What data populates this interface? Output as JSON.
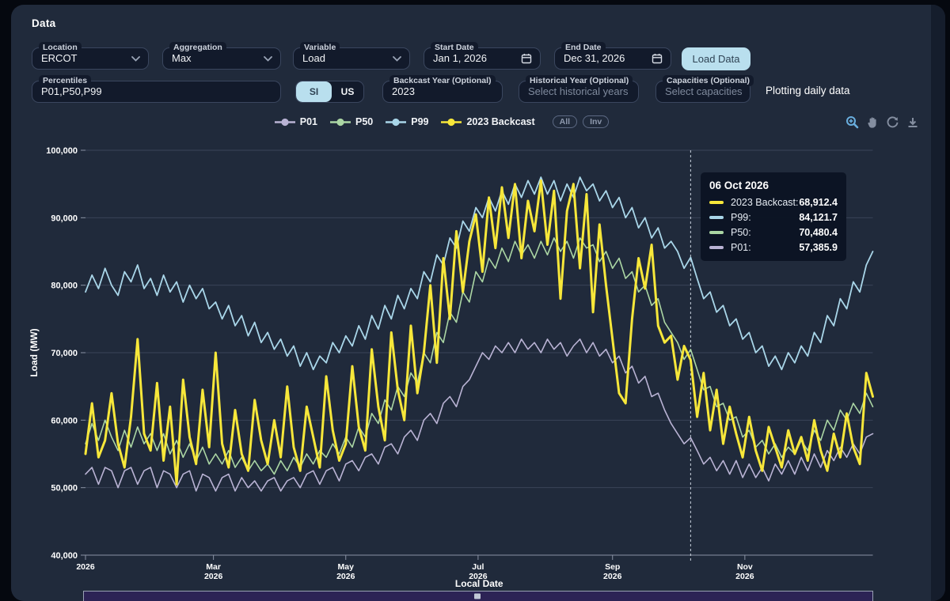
{
  "header": {
    "title": "Data"
  },
  "controls": {
    "location": {
      "label": "Location",
      "value": "ERCOT"
    },
    "aggregation": {
      "label": "Aggregation",
      "value": "Max"
    },
    "variable": {
      "label": "Variable",
      "value": "Load"
    },
    "start_date": {
      "label": "Start Date",
      "value": "Jan 1, 2026"
    },
    "end_date": {
      "label": "End Date",
      "value": "Dec 31, 2026"
    },
    "load_button": "Load Data",
    "percentiles": {
      "label": "Percentiles",
      "value": "P01,P50,P99"
    },
    "units": {
      "options": [
        "SI",
        "US"
      ],
      "selected": "SI"
    },
    "backcast_year": {
      "label": "Backcast Year (Optional)",
      "value": "2023"
    },
    "historical_year": {
      "label": "Historical Year (Optional)",
      "placeholder": "Select historical years"
    },
    "capacities": {
      "label": "Capacities (Optional)",
      "placeholder": "Select capacities"
    },
    "note": "Plotting daily data"
  },
  "legend": {
    "items": [
      {
        "label": "P01",
        "color": "#b9b3d4"
      },
      {
        "label": "P50",
        "color": "#abd6a4"
      },
      {
        "label": "P99",
        "color": "#a9d6e9"
      },
      {
        "label": "2023 Backcast",
        "color": "#f7e73a"
      }
    ],
    "buttons": [
      "All",
      "Inv"
    ]
  },
  "modebar": {
    "icons": [
      "zoom-in",
      "pan",
      "reset-axes",
      "download"
    ],
    "active_color": "#69aede",
    "idle_color": "#848ea0"
  },
  "tooltip": {
    "date": "06 Oct 2026",
    "rows": [
      {
        "label": "2023 Backcast:",
        "value": "68,912.4",
        "color": "#f7e73a"
      },
      {
        "label": "P99:",
        "value": "84,121.7",
        "color": "#a9d6e9"
      },
      {
        "label": "P50:",
        "value": "70,480.4",
        "color": "#abd6a4"
      },
      {
        "label": "P01:",
        "value": "57,385.9",
        "color": "#b9b3d4"
      }
    ]
  },
  "chart_data": {
    "type": "line",
    "title": "",
    "xlabel": "Local Date",
    "ylabel": "Load (MW)",
    "ylim": [
      40000,
      100000
    ],
    "grid": true,
    "legend_position": "top-center",
    "yticks": [
      {
        "value": 40000,
        "label": "40,000"
      },
      {
        "value": 50000,
        "label": "50,000"
      },
      {
        "value": 60000,
        "label": "60,000"
      },
      {
        "value": 70000,
        "label": "70,000"
      },
      {
        "value": 80000,
        "label": "80,000"
      },
      {
        "value": 90000,
        "label": "90,000"
      },
      {
        "value": 100000,
        "label": "100,000"
      }
    ],
    "xticks": [
      {
        "day": 0,
        "lines": [
          "2026"
        ]
      },
      {
        "day": 59,
        "lines": [
          "Mar",
          "2026"
        ]
      },
      {
        "day": 120,
        "lines": [
          "May",
          "2026"
        ]
      },
      {
        "day": 181,
        "lines": [
          "Jul",
          "2026"
        ]
      },
      {
        "day": 243,
        "lines": [
          "Sep",
          "2026"
        ]
      },
      {
        "day": 304,
        "lines": [
          "Nov",
          "2026"
        ]
      }
    ],
    "x_day_step": 3,
    "x_range_days": [
      0,
      363
    ],
    "marker_line": {
      "day": 279,
      "date": "06 Oct 2026",
      "style": "dashed"
    },
    "rangeslider": true,
    "series": [
      {
        "name": "P01",
        "color": "#b9b3d4",
        "width": 1.6,
        "values": [
          52000,
          53000,
          50500,
          53000,
          52500,
          50000,
          52500,
          53000,
          50500,
          52500,
          53000,
          50000,
          52500,
          52000,
          50000,
          52000,
          52500,
          49500,
          52000,
          51500,
          49500,
          51500,
          52000,
          49500,
          51500,
          50000,
          51000,
          49500,
          51000,
          51500,
          49500,
          51000,
          51500,
          50000,
          52000,
          52500,
          50500,
          52500,
          53000,
          51000,
          53500,
          54000,
          52500,
          54500,
          55000,
          53500,
          56000,
          56500,
          55000,
          57500,
          58500,
          57000,
          60000,
          61000,
          59500,
          62500,
          63500,
          62000,
          65000,
          66000,
          68000,
          70000,
          69000,
          71000,
          70000,
          71500,
          70000,
          72000,
          70500,
          71500,
          70000,
          72000,
          70500,
          71500,
          69500,
          71000,
          72000,
          70000,
          71500,
          69500,
          70500,
          68500,
          69500,
          67000,
          68000,
          65500,
          66500,
          63500,
          64000,
          61500,
          59500,
          58000,
          56500,
          57385.9,
          55500,
          53500,
          54500,
          52500,
          54000,
          52000,
          54000,
          51500,
          53500,
          51500,
          53000,
          51000,
          53500,
          52000,
          54000,
          52000,
          54500,
          52500,
          55000,
          53000,
          55500,
          54000,
          56000,
          54500,
          56500,
          55000,
          57500,
          58000
        ]
      },
      {
        "name": "P50",
        "color": "#abd6a4",
        "width": 1.6,
        "values": [
          56500,
          59500,
          57000,
          60000,
          57500,
          55500,
          58500,
          56000,
          59000,
          56500,
          58000,
          55500,
          58000,
          55000,
          57000,
          54500,
          56500,
          54000,
          56000,
          53500,
          55000,
          53500,
          55500,
          53000,
          54500,
          52500,
          54000,
          52500,
          53500,
          52000,
          54000,
          52500,
          54500,
          53000,
          55000,
          53500,
          55500,
          54500,
          56500,
          55000,
          57500,
          56000,
          59000,
          57500,
          61000,
          59500,
          63000,
          61500,
          65000,
          63500,
          67000,
          65500,
          70000,
          68500,
          73000,
          71500,
          76000,
          74500,
          79000,
          77500,
          82000,
          80500,
          84000,
          82500,
          85500,
          83500,
          86500,
          84500,
          86000,
          84000,
          86500,
          84500,
          87000,
          85000,
          86500,
          84000,
          87000,
          85500,
          86000,
          83500,
          85000,
          82500,
          84000,
          81000,
          82000,
          79000,
          80000,
          77000,
          78000,
          74500,
          73000,
          71500,
          69000,
          70480.4,
          67500,
          64500,
          65000,
          62000,
          62500,
          60000,
          60500,
          57500,
          58500,
          56000,
          57000,
          55000,
          56500,
          54500,
          56000,
          55000,
          57000,
          55500,
          58500,
          57000,
          60000,
          58500,
          61500,
          60000,
          62500,
          61000,
          64000,
          62000
        ]
      },
      {
        "name": "P99",
        "color": "#a9d6e9",
        "width": 1.8,
        "values": [
          79000,
          81500,
          79500,
          82500,
          80000,
          78500,
          82000,
          80500,
          83000,
          79500,
          81000,
          78500,
          81500,
          79000,
          80500,
          77500,
          80000,
          78000,
          79500,
          76500,
          77500,
          75000,
          77000,
          74000,
          75500,
          72500,
          74500,
          71500,
          73000,
          70500,
          72000,
          69500,
          71000,
          68000,
          70000,
          67500,
          69500,
          68500,
          71500,
          70000,
          72500,
          71000,
          74000,
          72000,
          75500,
          73500,
          77000,
          75000,
          78500,
          76500,
          79500,
          78000,
          82000,
          80500,
          84500,
          83000,
          87000,
          85500,
          89500,
          88000,
          91500,
          90000,
          93000,
          91000,
          94000,
          92000,
          95000,
          93000,
          95500,
          93500,
          96000,
          93500,
          95500,
          92500,
          95000,
          93000,
          96000,
          94000,
          95000,
          92500,
          94000,
          91500,
          93000,
          90000,
          91500,
          88500,
          90000,
          87000,
          88500,
          85500,
          86500,
          85000,
          82500,
          84121.7,
          81000,
          78000,
          79000,
          76000,
          77000,
          74000,
          75000,
          72000,
          73000,
          70000,
          71000,
          68000,
          69500,
          67500,
          70000,
          68500,
          71000,
          69500,
          73000,
          71500,
          75500,
          74000,
          78000,
          76500,
          80500,
          79000,
          83000,
          85000
        ]
      },
      {
        "name": "2023 Backcast",
        "color": "#f7e73a",
        "width": 3,
        "values": [
          55000,
          62500,
          54500,
          57000,
          64000,
          56500,
          53000,
          60500,
          72000,
          58000,
          55500,
          65500,
          54000,
          62000,
          50500,
          66000,
          57500,
          53500,
          64500,
          56000,
          70000,
          56500,
          53000,
          61500,
          55000,
          52500,
          63000,
          57000,
          53500,
          60000,
          54500,
          65000,
          56000,
          52500,
          62000,
          57500,
          53000,
          66500,
          58500,
          54000,
          56500,
          68000,
          59000,
          55500,
          70500,
          62000,
          57000,
          73000,
          64500,
          60000,
          74000,
          64000,
          70000,
          80000,
          68500,
          84000,
          75000,
          88000,
          79000,
          86500,
          90500,
          82000,
          93000,
          85500,
          94500,
          87000,
          95000,
          84000,
          92500,
          88000,
          95500,
          86000,
          94000,
          78000,
          91000,
          95000,
          82500,
          93500,
          76000,
          89000,
          80000,
          72000,
          64000,
          62500,
          75000,
          84000,
          79500,
          86000,
          74000,
          71500,
          72500,
          66000,
          71000,
          68912.4,
          60500,
          67000,
          58500,
          64500,
          56500,
          62000,
          58000,
          54500,
          60500,
          55500,
          52500,
          59000,
          56000,
          53000,
          58500,
          55000,
          57500,
          54000,
          60000,
          55500,
          52500,
          58000,
          54500,
          61000,
          56000,
          53500,
          67000,
          63500
        ]
      }
    ]
  }
}
